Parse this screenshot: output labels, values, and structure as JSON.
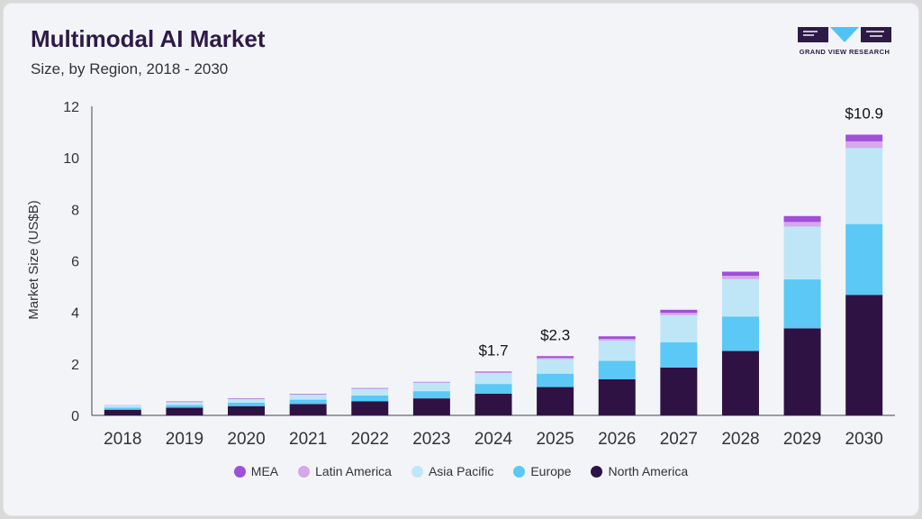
{
  "header": {
    "title": "Multimodal AI Market",
    "subtitle": "Size, by Region, 2018 - 2030"
  },
  "brand": {
    "logo_text": "GRAND VIEW RESEARCH",
    "color": "#2e1a47",
    "accent": "#4fc3f7"
  },
  "chart_data": {
    "type": "bar",
    "stacked": true,
    "title": "Multimodal AI Market",
    "subtitle": "Size, by Region, 2018 - 2030",
    "xlabel": "",
    "ylabel": "Market Size (US$B)",
    "ylim": [
      0,
      12
    ],
    "yticks": [
      0,
      2,
      4,
      6,
      8,
      10,
      12
    ],
    "grid": false,
    "legend_position": "bottom",
    "categories": [
      "2018",
      "2019",
      "2020",
      "2021",
      "2022",
      "2023",
      "2024",
      "2025",
      "2026",
      "2027",
      "2028",
      "2029",
      "2030"
    ],
    "series": [
      {
        "name": "North America",
        "color": "#2e1244",
        "values": [
          0.22,
          0.3,
          0.36,
          0.44,
          0.55,
          0.66,
          0.84,
          1.1,
          1.4,
          1.86,
          2.5,
          3.38,
          4.68
        ]
      },
      {
        "name": "Europe",
        "color": "#5bc8f5",
        "values": [
          0.08,
          0.1,
          0.13,
          0.17,
          0.22,
          0.28,
          0.38,
          0.52,
          0.72,
          0.98,
          1.34,
          1.9,
          2.75
        ]
      },
      {
        "name": "Asia Pacific",
        "color": "#bfe6f7",
        "values": [
          0.09,
          0.12,
          0.15,
          0.2,
          0.26,
          0.33,
          0.42,
          0.56,
          0.78,
          1.05,
          1.45,
          2.05,
          2.95
        ]
      },
      {
        "name": "Latin America",
        "color": "#d6a7ea",
        "values": [
          0.01,
          0.01,
          0.01,
          0.02,
          0.02,
          0.02,
          0.03,
          0.05,
          0.07,
          0.09,
          0.13,
          0.18,
          0.26
        ]
      },
      {
        "name": "MEA",
        "color": "#a04fd6",
        "values": [
          0.0,
          0.01,
          0.01,
          0.01,
          0.01,
          0.01,
          0.03,
          0.07,
          0.1,
          0.12,
          0.16,
          0.23,
          0.26
        ]
      }
    ],
    "annotations": [
      {
        "category": "2024",
        "text": "$1.7"
      },
      {
        "category": "2025",
        "text": "$2.3"
      },
      {
        "category": "2030",
        "text": "$10.9"
      }
    ]
  }
}
